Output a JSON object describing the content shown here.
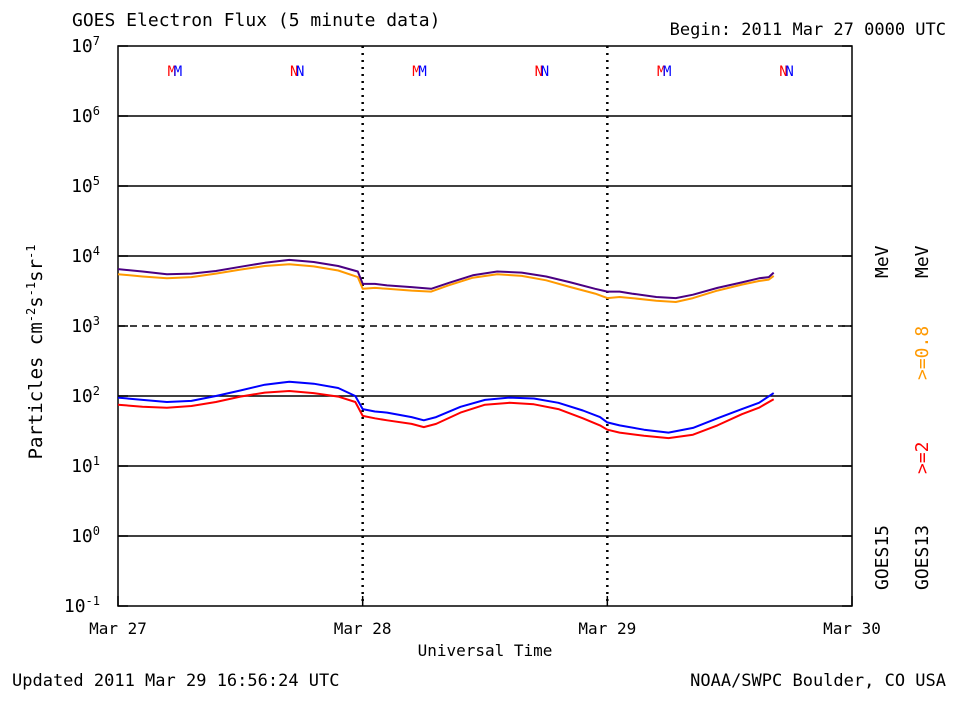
{
  "header": {
    "title": "GOES Electron Flux (5 minute data)",
    "begin": "Begin: 2011 Mar 27 0000 UTC"
  },
  "footer": {
    "updated": "Updated 2011 Mar 29 16:56:24 UTC",
    "credit": "NOAA/SWPC Boulder, CO USA"
  },
  "colors": {
    "goes15_ge2": "#0000ff",
    "goes15_ge08": "#4b0082",
    "goes13_ge2": "#ff0000",
    "goes13_ge08": "#ff9900",
    "axis": "#000000"
  },
  "legend": {
    "goes15": "GOES15",
    "goes13": "GOES13",
    "ge2": ">=2",
    "ge08": ">=0.8",
    "mev": "MeV"
  },
  "chart_data": {
    "type": "line",
    "title": "GOES Electron Flux (5 minute data)",
    "xlabel": "Universal Time",
    "ylabel_parts": [
      "Particles cm",
      "-2",
      "s",
      "-1",
      "sr",
      "-1"
    ],
    "xlim": [
      0,
      3
    ],
    "x_ticks": [
      {
        "v": 0,
        "label": "Mar 27"
      },
      {
        "v": 1,
        "label": "Mar 28"
      },
      {
        "v": 2,
        "label": "Mar 29"
      },
      {
        "v": 3,
        "label": "Mar 30"
      }
    ],
    "y_scale": "log",
    "ylim": [
      0.1,
      10000000
    ],
    "y_ticks": [
      {
        "v": 0.1,
        "base": "10",
        "exp": "-1"
      },
      {
        "v": 1,
        "base": "10",
        "exp": "0"
      },
      {
        "v": 10,
        "base": "10",
        "exp": "1"
      },
      {
        "v": 100,
        "base": "10",
        "exp": "2"
      },
      {
        "v": 1000,
        "base": "10",
        "exp": "3"
      },
      {
        "v": 10000,
        "base": "10",
        "exp": "4"
      },
      {
        "v": 100000,
        "base": "10",
        "exp": "5"
      },
      {
        "v": 1000000,
        "base": "10",
        "exp": "6"
      },
      {
        "v": 10000000,
        "base": "10",
        "exp": "7"
      }
    ],
    "solid_gridlines": [
      1,
      10,
      100,
      10000,
      100000,
      1000000
    ],
    "dashed_gridlines": [
      1000
    ],
    "midnight_markers": [
      1,
      2
    ],
    "markers": [
      {
        "x": 0.22,
        "label": "M",
        "color": "#ff0000"
      },
      {
        "x": 0.245,
        "label": "M",
        "color": "#0000ff"
      },
      {
        "x": 0.72,
        "label": "N",
        "color": "#ff0000"
      },
      {
        "x": 0.745,
        "label": "N",
        "color": "#0000ff"
      },
      {
        "x": 1.22,
        "label": "M",
        "color": "#ff0000"
      },
      {
        "x": 1.245,
        "label": "M",
        "color": "#0000ff"
      },
      {
        "x": 1.72,
        "label": "N",
        "color": "#ff0000"
      },
      {
        "x": 1.745,
        "label": "N",
        "color": "#0000ff"
      },
      {
        "x": 2.22,
        "label": "M",
        "color": "#ff0000"
      },
      {
        "x": 2.245,
        "label": "M",
        "color": "#0000ff"
      },
      {
        "x": 2.72,
        "label": "N",
        "color": "#ff0000"
      },
      {
        "x": 2.745,
        "label": "N",
        "color": "#0000ff"
      }
    ],
    "series": [
      {
        "name": "GOES15 >=0.8 MeV",
        "color": "#4b0082",
        "x": [
          0,
          0.1,
          0.2,
          0.3,
          0.4,
          0.5,
          0.6,
          0.7,
          0.8,
          0.9,
          0.98,
          1.0,
          1.05,
          1.1,
          1.2,
          1.28,
          1.35,
          1.45,
          1.55,
          1.65,
          1.75,
          1.85,
          1.95,
          2.0,
          2.05,
          2.1,
          2.2,
          2.28,
          2.35,
          2.45,
          2.55,
          2.62,
          2.66,
          2.68
        ],
        "y": [
          6500,
          6000,
          5500,
          5600,
          6100,
          7000,
          8000,
          8800,
          8200,
          7200,
          6000,
          4000,
          4000,
          3800,
          3600,
          3400,
          4100,
          5300,
          6000,
          5800,
          5100,
          4200,
          3400,
          3100,
          3100,
          2900,
          2600,
          2500,
          2800,
          3500,
          4200,
          4800,
          5000,
          5800
        ]
      },
      {
        "name": "GOES13 >=0.8 MeV",
        "color": "#ff9900",
        "x": [
          0,
          0.1,
          0.2,
          0.3,
          0.4,
          0.5,
          0.6,
          0.7,
          0.8,
          0.9,
          0.98,
          1.0,
          1.05,
          1.1,
          1.2,
          1.28,
          1.35,
          1.45,
          1.55,
          1.65,
          1.75,
          1.85,
          1.95,
          2.0,
          2.05,
          2.1,
          2.2,
          2.28,
          2.35,
          2.45,
          2.55,
          2.62,
          2.66,
          2.68
        ],
        "y": [
          5500,
          5100,
          4800,
          5000,
          5600,
          6400,
          7200,
          7600,
          7100,
          6200,
          5000,
          3400,
          3500,
          3400,
          3200,
          3100,
          3800,
          4900,
          5500,
          5200,
          4500,
          3600,
          2900,
          2500,
          2600,
          2500,
          2300,
          2200,
          2500,
          3200,
          3900,
          4400,
          4600,
          5200
        ]
      },
      {
        "name": "GOES15 >=2 MeV",
        "color": "#0000ff",
        "x": [
          0,
          0.1,
          0.2,
          0.3,
          0.4,
          0.5,
          0.6,
          0.7,
          0.8,
          0.9,
          0.97,
          1.0,
          1.05,
          1.1,
          1.2,
          1.25,
          1.3,
          1.4,
          1.5,
          1.6,
          1.7,
          1.8,
          1.9,
          1.97,
          2.0,
          2.05,
          2.15,
          2.25,
          2.35,
          2.45,
          2.55,
          2.62,
          2.68
        ],
        "y": [
          95,
          88,
          82,
          85,
          100,
          120,
          145,
          160,
          150,
          130,
          100,
          65,
          60,
          58,
          50,
          45,
          50,
          70,
          88,
          95,
          92,
          80,
          62,
          50,
          42,
          38,
          33,
          30,
          35,
          48,
          65,
          80,
          110
        ]
      },
      {
        "name": "GOES13 >=2 MeV",
        "color": "#ff0000",
        "x": [
          0,
          0.1,
          0.2,
          0.3,
          0.4,
          0.5,
          0.6,
          0.7,
          0.8,
          0.9,
          0.97,
          1.0,
          1.05,
          1.1,
          1.2,
          1.25,
          1.3,
          1.4,
          1.5,
          1.6,
          1.7,
          1.8,
          1.9,
          1.97,
          2.0,
          2.05,
          2.15,
          2.25,
          2.35,
          2.45,
          2.55,
          2.62,
          2.68
        ],
        "y": [
          75,
          70,
          68,
          72,
          82,
          98,
          112,
          118,
          110,
          98,
          82,
          52,
          48,
          45,
          40,
          36,
          40,
          58,
          75,
          80,
          76,
          65,
          48,
          38,
          33,
          30,
          27,
          25,
          28,
          38,
          55,
          68,
          90
        ]
      }
    ]
  }
}
